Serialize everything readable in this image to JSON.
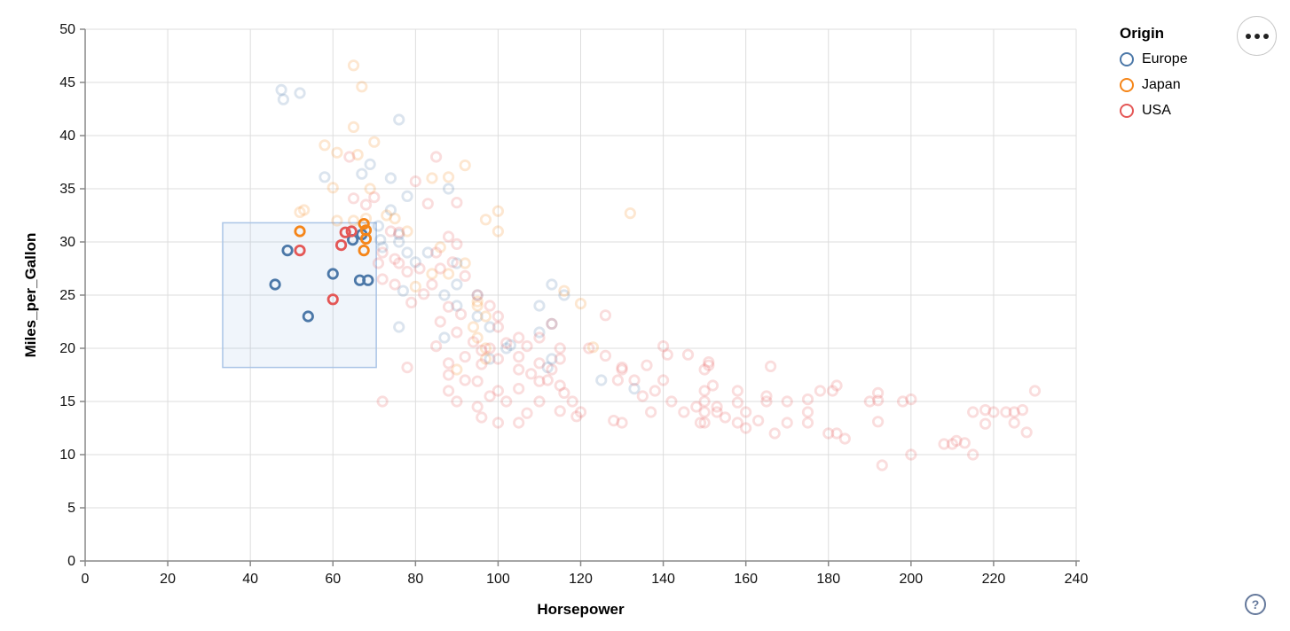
{
  "legend": {
    "title": "Origin",
    "entries": [
      {
        "label": "Europe",
        "color": "#4c78a8"
      },
      {
        "label": "Japan",
        "color": "#f58518"
      },
      {
        "label": "USA",
        "color": "#e45756"
      }
    ]
  },
  "menu_button": {
    "icon": "ellipsis-menu"
  },
  "help_button": {
    "label": "?"
  },
  "chart_data": {
    "type": "scatter",
    "title": "",
    "xlabel": "Horsepower",
    "ylabel": "Miles_per_Gallon",
    "xlim": [
      0,
      240
    ],
    "ylim": [
      0,
      50
    ],
    "x_ticks": [
      0,
      20,
      40,
      60,
      80,
      100,
      120,
      140,
      160,
      180,
      200,
      220,
      240
    ],
    "y_ticks": [
      0,
      5,
      10,
      15,
      20,
      25,
      30,
      35,
      40,
      45,
      50
    ],
    "grid": true,
    "legend_position": "top-right",
    "point_style": {
      "shape": "ring",
      "radius": 5.2,
      "stroke_width": 2.8,
      "faded_opacity": 0.2,
      "selected_opacity": 1
    },
    "brush_selection": {
      "x": [
        33.3,
        70.5
      ],
      "y": [
        18.2,
        31.8
      ]
    },
    "series": [
      {
        "name": "Europe",
        "color": "#4c78a8",
        "selected": [
          [
            46,
            26
          ],
          [
            49,
            29.2
          ],
          [
            54,
            23
          ],
          [
            60,
            27
          ],
          [
            64.8,
            30.2
          ],
          [
            67,
            30.7
          ],
          [
            66.5,
            26.4
          ],
          [
            68.5,
            26.4
          ]
        ],
        "points": [
          [
            47.5,
            44.3
          ],
          [
            48,
            43.4
          ],
          [
            52,
            44
          ],
          [
            76,
            41.5
          ],
          [
            58,
            36.1
          ],
          [
            69,
            37.3
          ],
          [
            67,
            36.4
          ],
          [
            78,
            34.3
          ],
          [
            88,
            35
          ],
          [
            74,
            36
          ],
          [
            74,
            33
          ],
          [
            71,
            31.5
          ],
          [
            71.5,
            30.2
          ],
          [
            76,
            30.7
          ],
          [
            76,
            30
          ],
          [
            83,
            29
          ],
          [
            90,
            28
          ],
          [
            78,
            29
          ],
          [
            72,
            29.5
          ],
          [
            80,
            28.1
          ],
          [
            90,
            26
          ],
          [
            113,
            26
          ],
          [
            87,
            25
          ],
          [
            95,
            25
          ],
          [
            90,
            24
          ],
          [
            110,
            24
          ],
          [
            77,
            25.4
          ],
          [
            95,
            23
          ],
          [
            76,
            22
          ],
          [
            98,
            22
          ],
          [
            87,
            21
          ],
          [
            110,
            21.5
          ],
          [
            102,
            20
          ],
          [
            103,
            20.3
          ],
          [
            98,
            19
          ],
          [
            113,
            19
          ],
          [
            112,
            18.2
          ],
          [
            125,
            17
          ],
          [
            133,
            16.2
          ],
          [
            116,
            25
          ],
          [
            113,
            22.3
          ]
        ]
      },
      {
        "name": "Japan",
        "color": "#f58518",
        "selected": [
          [
            52,
            31
          ],
          [
            67.5,
            31.7
          ],
          [
            68,
            31.1
          ],
          [
            68,
            30.3
          ],
          [
            67.5,
            29.2
          ]
        ],
        "points": [
          [
            65,
            46.6
          ],
          [
            67,
            44.6
          ],
          [
            65,
            40.8
          ],
          [
            70,
            39.4
          ],
          [
            58,
            39.1
          ],
          [
            61,
            38.4
          ],
          [
            66,
            38.2
          ],
          [
            60,
            35.1
          ],
          [
            69,
            35
          ],
          [
            53,
            33
          ],
          [
            52,
            32.8
          ],
          [
            61,
            32
          ],
          [
            65,
            32
          ],
          [
            68,
            32.2
          ],
          [
            73,
            32.5
          ],
          [
            75,
            32.2
          ],
          [
            92,
            37.2
          ],
          [
            88,
            36.1
          ],
          [
            84,
            36
          ],
          [
            100,
            32.9
          ],
          [
            97,
            32.1
          ],
          [
            132,
            32.7
          ],
          [
            88,
            27
          ],
          [
            92,
            28
          ],
          [
            84,
            27
          ],
          [
            78,
            31
          ],
          [
            95,
            24.4
          ],
          [
            95,
            24
          ],
          [
            97,
            23
          ],
          [
            94,
            22
          ],
          [
            95,
            21
          ],
          [
            97,
            20
          ],
          [
            90,
            18
          ],
          [
            97,
            19
          ],
          [
            116,
            25.4
          ],
          [
            120,
            24.2
          ],
          [
            123,
            20.1
          ],
          [
            80,
            25.8
          ],
          [
            100,
            31
          ],
          [
            86,
            29.5
          ]
        ]
      },
      {
        "name": "USA",
        "color": "#e45756",
        "selected": [
          [
            52,
            29.2
          ],
          [
            60,
            24.6
          ],
          [
            63,
            30.9
          ],
          [
            64.5,
            31
          ],
          [
            62,
            29.7
          ]
        ],
        "points": [
          [
            85,
            38
          ],
          [
            80,
            35.7
          ],
          [
            83,
            33.6
          ],
          [
            90,
            33.7
          ],
          [
            64,
            38
          ],
          [
            70,
            34.2
          ],
          [
            65,
            34.1
          ],
          [
            68,
            33.5
          ],
          [
            74,
            31
          ],
          [
            76,
            30.9
          ],
          [
            72,
            29
          ],
          [
            75,
            28.4
          ],
          [
            71,
            28
          ],
          [
            76,
            28
          ],
          [
            78,
            27.2
          ],
          [
            85,
            29
          ],
          [
            88,
            30.5
          ],
          [
            90,
            29.8
          ],
          [
            89,
            28.1
          ],
          [
            86,
            27.5
          ],
          [
            92,
            26.8
          ],
          [
            84,
            26
          ],
          [
            82,
            25.1
          ],
          [
            79,
            24.3
          ],
          [
            88,
            23.9
          ],
          [
            91,
            23.2
          ],
          [
            86,
            22.5
          ],
          [
            72,
            26.5
          ],
          [
            75,
            26
          ],
          [
            81,
            27.5
          ],
          [
            95,
            25
          ],
          [
            98,
            24
          ],
          [
            100,
            23
          ],
          [
            90,
            21.5
          ],
          [
            94,
            20.6
          ],
          [
            85,
            20.2
          ],
          [
            96,
            19.8
          ],
          [
            92,
            19.2
          ],
          [
            88,
            18.6
          ],
          [
            100,
            22
          ],
          [
            105,
            21
          ],
          [
            102,
            20.5
          ],
          [
            98,
            20
          ],
          [
            110,
            21
          ],
          [
            107,
            20.2
          ],
          [
            105,
            19.2
          ],
          [
            100,
            19
          ],
          [
            96,
            18.5
          ],
          [
            105,
            18
          ],
          [
            110,
            18.6
          ],
          [
            108,
            17.6
          ],
          [
            88,
            17.5
          ],
          [
            92,
            17
          ],
          [
            95,
            16.9
          ],
          [
            100,
            16
          ],
          [
            105,
            16.2
          ],
          [
            110,
            16.9
          ],
          [
            98,
            15.5
          ],
          [
            102,
            15
          ],
          [
            95,
            14.5
          ],
          [
            88,
            16
          ],
          [
            90,
            15
          ],
          [
            115,
            20
          ],
          [
            115,
            19
          ],
          [
            113,
            18
          ],
          [
            112,
            17
          ],
          [
            115,
            16.5
          ],
          [
            116,
            15.8
          ],
          [
            118,
            15
          ],
          [
            110,
            15
          ],
          [
            107,
            13.9
          ],
          [
            100,
            13
          ],
          [
            105,
            13
          ],
          [
            119,
            13.6
          ],
          [
            120,
            14
          ],
          [
            115,
            14.1
          ],
          [
            96,
            13.5
          ],
          [
            122,
            20
          ],
          [
            126,
            19.3
          ],
          [
            126,
            23.1
          ],
          [
            113,
            22.3
          ],
          [
            140,
            20.2
          ],
          [
            141,
            19.4
          ],
          [
            146,
            19.4
          ],
          [
            151,
            18.7
          ],
          [
            151,
            18.4
          ],
          [
            166,
            18.3
          ],
          [
            130,
            18.2
          ],
          [
            136,
            18.4
          ],
          [
            129,
            17
          ],
          [
            133,
            17
          ],
          [
            138,
            16
          ],
          [
            135,
            15.5
          ],
          [
            142,
            15
          ],
          [
            145,
            14
          ],
          [
            148,
            14.5
          ],
          [
            150,
            16
          ],
          [
            150,
            15
          ],
          [
            150,
            14
          ],
          [
            150,
            13
          ],
          [
            149,
            13
          ],
          [
            155,
            13.5
          ],
          [
            158,
            13
          ],
          [
            163,
            13.2
          ],
          [
            170,
            13
          ],
          [
            167,
            12
          ],
          [
            160,
            12.5
          ],
          [
            175,
            13
          ],
          [
            175,
            14
          ],
          [
            180,
            12
          ],
          [
            153,
            14.5
          ],
          [
            152,
            16.5
          ],
          [
            158,
            16
          ],
          [
            165,
            15.5
          ],
          [
            175,
            15.2
          ],
          [
            178,
            16
          ],
          [
            128,
            13.2
          ],
          [
            130,
            13
          ],
          [
            137,
            14
          ],
          [
            158,
            14.9
          ],
          [
            130,
            18
          ],
          [
            165,
            15
          ],
          [
            150,
            18
          ],
          [
            198,
            15
          ],
          [
            220,
            14
          ],
          [
            215,
            14
          ],
          [
            225,
            14
          ],
          [
            190,
            15
          ],
          [
            170,
            15
          ],
          [
            160,
            14
          ],
          [
            153,
            14
          ],
          [
            225,
            13
          ],
          [
            182,
            16.5
          ],
          [
            181,
            16
          ],
          [
            192,
            15.8
          ],
          [
            192,
            15.1
          ],
          [
            192,
            13.1
          ],
          [
            200,
            15.2
          ],
          [
            218,
            14.2
          ],
          [
            218,
            12.9
          ],
          [
            223,
            14
          ],
          [
            227,
            14.2
          ],
          [
            228,
            12.1
          ],
          [
            230,
            16
          ],
          [
            200,
            10
          ],
          [
            210,
            11
          ],
          [
            215,
            10
          ],
          [
            193,
            9
          ],
          [
            208,
            11
          ],
          [
            182,
            12
          ],
          [
            211,
            11.3
          ],
          [
            213,
            11.1
          ],
          [
            184,
            11.5
          ],
          [
            72,
            15
          ],
          [
            78,
            18.2
          ],
          [
            140,
            17
          ]
        ]
      }
    ]
  }
}
